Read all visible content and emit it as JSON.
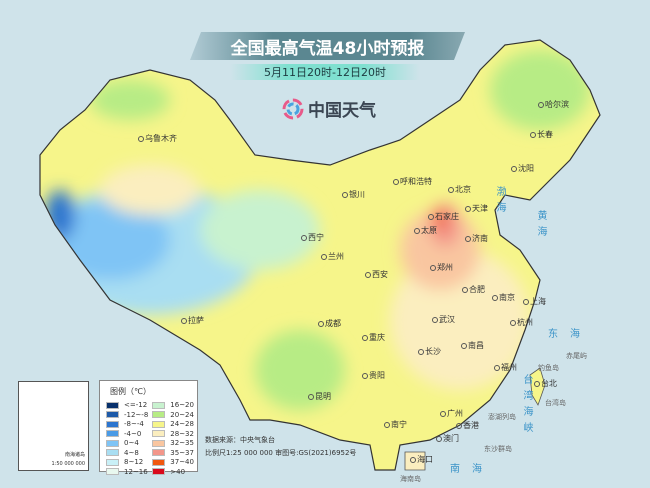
{
  "header": {
    "title": "全国最高气温48小时预报",
    "subtitle": "5月11日20时-12日20时",
    "logo_text": "中国天气"
  },
  "legend": {
    "title": "图例（℃）",
    "items": [
      {
        "label": "<=-12",
        "color": "#08306b"
      },
      {
        "label": "-12~-8",
        "color": "#1e5aa8"
      },
      {
        "label": "-8~-4",
        "color": "#2c75cf"
      },
      {
        "label": "-4~0",
        "color": "#4a9be6"
      },
      {
        "label": "0~4",
        "color": "#7fc4f5"
      },
      {
        "label": "4~8",
        "color": "#a9def2"
      },
      {
        "label": "8~12",
        "color": "#c9f0f7"
      },
      {
        "label": "12~16",
        "color": "#e9f8ef"
      },
      {
        "label": "16~20",
        "color": "#c8f2cf"
      },
      {
        "label": "20~24",
        "color": "#b7ec85"
      },
      {
        "label": "24~28",
        "color": "#f6f58a"
      },
      {
        "label": "28~32",
        "color": "#fbeebf"
      },
      {
        "label": "32~35",
        "color": "#f9c6a0"
      },
      {
        "label": "35~37",
        "color": "#f3968a"
      },
      {
        "label": "37~40",
        "color": "#f0570f"
      },
      {
        "label": ">40",
        "color": "#d9091b"
      }
    ]
  },
  "inset": {
    "label": "南海诸岛",
    "scale": "1:50 000 000"
  },
  "footer": {
    "source": "数据来源：中央气象台",
    "scale": "比例尺1:25 000 000   审图号:GS(2021)6952号"
  },
  "cities": [
    "乌鲁木齐",
    "拉萨",
    "西宁",
    "兰州",
    "银川",
    "呼和浩特",
    "北京",
    "天津",
    "石家庄",
    "太原",
    "济南",
    "郑州",
    "西安",
    "成都",
    "重庆",
    "贵阳",
    "昆明",
    "南宁",
    "广州",
    "澳门",
    "香港",
    "海口",
    "长沙",
    "武汉",
    "南昌",
    "合肥",
    "南京",
    "上海",
    "杭州",
    "福州",
    "台北",
    "沈阳",
    "长春",
    "哈尔滨"
  ],
  "seas": [
    "渤海",
    "黄海",
    "东海",
    "台湾海峡",
    "南海"
  ],
  "islands": [
    "钓鱼岛",
    "赤尾屿",
    "台湾岛",
    "澎湖列岛",
    "东沙群岛",
    "海南岛"
  ]
}
